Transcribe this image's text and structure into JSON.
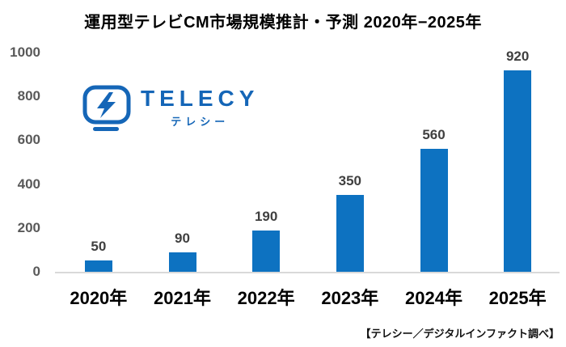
{
  "title": "運用型テレビCM市場規模推計・予測 2020年−2025年",
  "logo": {
    "name": "TELECY",
    "sub": "テレシー",
    "color": "#1566B7"
  },
  "source": "【テレシー／デジタルインファクト調べ】",
  "colors": {
    "bar": "#0D72C1",
    "axis_line": "#D9D9D9",
    "y_label": "#595959",
    "data_label": "#3F3F3F",
    "x_label": "#000000"
  },
  "chart_data": {
    "type": "bar",
    "title": "運用型テレビCM市場規模推計・予測 2020年−2025年",
    "categories": [
      "2020年",
      "2021年",
      "2022年",
      "2023年",
      "2024年",
      "2025年"
    ],
    "values": [
      50,
      90,
      190,
      350,
      560,
      920
    ],
    "y_ticks": [
      0,
      200,
      400,
      600,
      800,
      1000
    ],
    "ylim": [
      0,
      1000
    ],
    "xlabel": "",
    "ylabel": "",
    "grid": false,
    "legend": false,
    "data_labels_shown": true,
    "source_note": "【テレシー／デジタルインファクト調べ】"
  }
}
